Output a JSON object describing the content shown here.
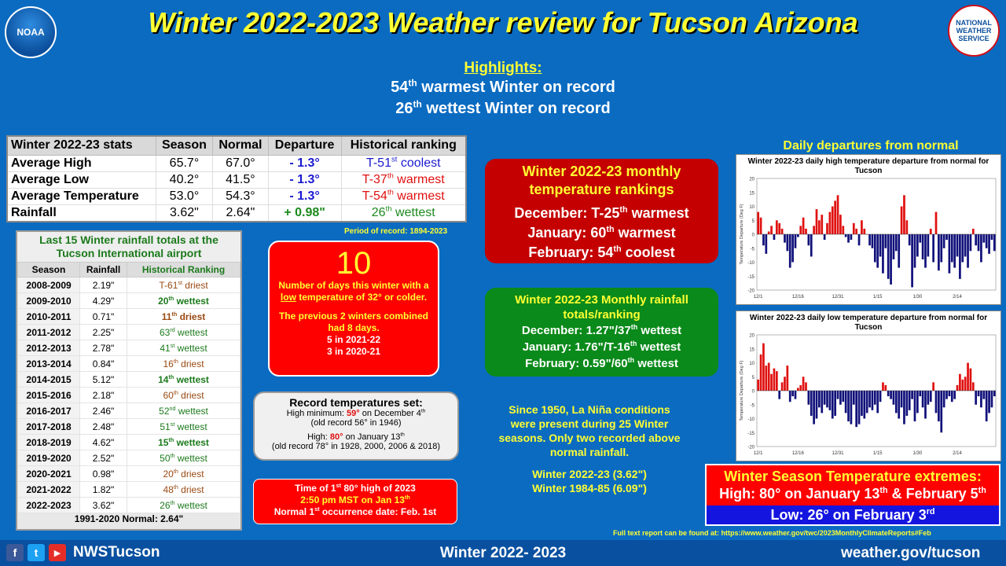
{
  "header": {
    "title": "Winter 2022-2023 Weather review for Tucson Arizona",
    "noaa_logo": "NOAA",
    "nws_logo": "NATIONAL WEATHER SERVICE"
  },
  "highlights": {
    "heading": "Highlights:",
    "line1_num": "54",
    "line1_sup": "th",
    "line1_text": " warmest  Winter on record",
    "line2_num": "26",
    "line2_sup": "th",
    "line2_text": " wettest  Winter on record"
  },
  "stats": {
    "headers": [
      "Winter 2022-23 stats",
      "Season",
      "Normal",
      "Departure",
      "Historical ranking"
    ],
    "rows": [
      {
        "label": "Average High",
        "season": "65.7°",
        "normal": "67.0°",
        "departure": "- 1.3°",
        "rank_pre": "T-51",
        "rank_sup": "st",
        "rank_post": " coolest"
      },
      {
        "label": "Average Low",
        "season": "40.2°",
        "normal": "41.5°",
        "departure": "- 1.3°",
        "rank_pre": "T-37",
        "rank_sup": "th",
        "rank_post": " warmest"
      },
      {
        "label": "Average Temperature",
        "season": "53.0°",
        "normal": "54.3°",
        "departure": "- 1.3°",
        "rank_pre": "T-54",
        "rank_sup": "th",
        "rank_post": " warmest"
      },
      {
        "label": "Rainfall",
        "season": "3.62\"",
        "normal": "2.64\"",
        "departure": "+ 0.98\"",
        "rank_pre": "26",
        "rank_sup": "th",
        "rank_post": " wettest"
      }
    ],
    "period": "Period of record: 1894-2023"
  },
  "rainfall": {
    "caption": "Last 15 Winter rainfall totals at the Tucson International airport",
    "headers": [
      "Season",
      "Rainfall",
      "Historical Ranking"
    ],
    "rows": [
      {
        "season": "2008-2009",
        "rain": "2.19\"",
        "rank": "T-61",
        "sup": "st",
        "post": " driest",
        "style": "rk-br"
      },
      {
        "season": "2009-2010",
        "rain": "4.29\"",
        "rank": "20",
        "sup": "th",
        "post": " wettest",
        "style": "rk-b"
      },
      {
        "season": "2010-2011",
        "rain": "0.71\"",
        "rank": "11",
        "sup": "th",
        "post": " driest",
        "style": "rk-brb"
      },
      {
        "season": "2011-2012",
        "rain": "2.25\"",
        "rank": "63",
        "sup": "rd",
        "post": " wettest",
        "style": "rk-n"
      },
      {
        "season": "2012-2013",
        "rain": "2.78\"",
        "rank": "41",
        "sup": "st",
        "post": " wettest",
        "style": "rk-n"
      },
      {
        "season": "2013-2014",
        "rain": "0.84\"",
        "rank": "16",
        "sup": "th",
        "post": " driest",
        "style": "rk-br"
      },
      {
        "season": "2014-2015",
        "rain": "5.12\"",
        "rank": "14",
        "sup": "th",
        "post": " wettest",
        "style": "rk-b"
      },
      {
        "season": "2015-2016",
        "rain": "2.18\"",
        "rank": "60",
        "sup": "th",
        "post": " driest",
        "style": "rk-br"
      },
      {
        "season": "2016-2017",
        "rain": "2.46\"",
        "rank": "52",
        "sup": "nd",
        "post": " wettest",
        "style": "rk-n"
      },
      {
        "season": "2017-2018",
        "rain": "2.48\"",
        "rank": "51",
        "sup": "st",
        "post": " wettest",
        "style": "rk-n"
      },
      {
        "season": "2018-2019",
        "rain": "4.62\"",
        "rank": "15",
        "sup": "th",
        "post": " wettest",
        "style": "rk-b"
      },
      {
        "season": "2019-2020",
        "rain": "2.52\"",
        "rank": "50",
        "sup": "th",
        "post": " wettest",
        "style": "rk-n"
      },
      {
        "season": "2020-2021",
        "rain": "0.98\"",
        "rank": "20",
        "sup": "th",
        "post": " driest",
        "style": "rk-br"
      },
      {
        "season": "2021-2022",
        "rain": "1.82\"",
        "rank": "48",
        "sup": "th",
        "post": " driest",
        "style": "rk-br"
      },
      {
        "season": "2022-2023",
        "rain": "3.62\"",
        "rank": "26",
        "sup": "th",
        "post": " wettest",
        "style": "rk-n"
      }
    ],
    "footer": "1991-2020 Normal: 2.64\""
  },
  "cold_days": {
    "count": "10",
    "line1": "Number of days this winter with a ",
    "low_word": "low",
    "line2": " temperature of 32° or colder.",
    "prev": "The previous 2 winters combined had 8 days.",
    "y1": "5 in 2021-22",
    "y2": "3 in 2020-21"
  },
  "records": {
    "heading": "Record temperatures set:",
    "hm_pre": "High minimum: ",
    "hm_val": "59°",
    "hm_post": " on December 4",
    "hm_sup": "th",
    "hm_old": "(old record 56° in 1946)",
    "h_pre": "High: ",
    "h_val": "80°",
    "h_post": " on January 13",
    "h_sup": "th",
    "h_old": "(old record 78° in 1928, 2000, 2006 & 2018)"
  },
  "first80": {
    "l1_pre": "Time of 1",
    "l1_sup": "st",
    "l1_post": " 80° high of 2023",
    "l2_pre": "2:50 pm MST on Jan 13",
    "l2_sup": "th",
    "l3_pre": "Normal 1",
    "l3_sup": "st",
    "l3_post": " occurrence date: Feb. 1st"
  },
  "monthly_temp": {
    "title": "Winter 2022-23 monthly temperature rankings",
    "rows": [
      {
        "pre": "December:  T-25",
        "sup": "th",
        "post": " warmest"
      },
      {
        "pre": "January: 60",
        "sup": "th",
        "post": " warmest"
      },
      {
        "pre": "February: 54",
        "sup": "th",
        "post": " coolest"
      }
    ]
  },
  "monthly_rain": {
    "title": "Winter 2022-23  Monthly rainfall  totals/ranking",
    "rows": [
      {
        "pre": "December:  1.27\"/37",
        "sup": "th",
        "post": "  wettest"
      },
      {
        "pre": "January:  1.76\"/T-16",
        "sup": "th",
        "post": "  wettest"
      },
      {
        "pre": "February:  0.59\"/60",
        "sup": "th",
        "post": "  wettest"
      }
    ]
  },
  "lanina": {
    "text": "Since 1950, La Niña conditions were present during 25 Winter seasons. Only two recorded above normal rainfall.",
    "w1": "Winter 2022-23 (3.62\")",
    "w2": "Winter 1984-85 (6.09\")"
  },
  "daily": {
    "title": "Daily departures from normal",
    "hi_chart_title": "Winter 2022-23 daily high temperature departure from normal for Tucson",
    "lo_chart_title": "Winter 2022-23 daily low temperature departure from normal for Tucson",
    "ylabel": "Temperature Departure (Deg F)",
    "x_ticks": [
      "12/1",
      "12/16",
      "12/31",
      "1/15",
      "1/30",
      "2/14"
    ],
    "pos_color": "#e01010",
    "neg_color": "#10107a"
  },
  "chart_data": [
    {
      "type": "bar",
      "title": "Winter 2022-23 daily high temperature departure from normal for Tucson",
      "ylabel": "Temperature Departure (Deg F)",
      "ylim": [
        -20,
        20
      ],
      "y_ticks": [
        20,
        15,
        10,
        5,
        0,
        -5,
        -10,
        -15,
        -20
      ],
      "x_ticks": [
        "12/1",
        "12/16",
        "12/31",
        "1/15",
        "1/30",
        "2/14"
      ],
      "values": [
        8,
        6,
        -4,
        -7,
        1,
        3,
        -2,
        5,
        4,
        2,
        -3,
        -6,
        -12,
        -10,
        -5,
        -1,
        3,
        6,
        2,
        -4,
        -8,
        3,
        9,
        5,
        7,
        -2,
        4,
        8,
        10,
        12,
        14,
        7,
        3,
        -1,
        -3,
        -2,
        4,
        2,
        -4,
        5,
        2,
        0,
        -4,
        -5,
        -10,
        -12,
        -8,
        -14,
        -5,
        -16,
        -18,
        -9,
        -6,
        -12,
        10,
        14,
        5,
        -4,
        -19,
        -12,
        -8,
        -3,
        -9,
        -12,
        -8,
        2,
        -10,
        8,
        -13,
        -10,
        -5,
        -2,
        -14,
        -10,
        -12,
        -8,
        -16,
        -10,
        -8,
        -12,
        -6,
        2,
        -4,
        -6,
        -10,
        -3,
        -5,
        -7,
        -2,
        -6
      ],
      "grid": false
    },
    {
      "type": "bar",
      "title": "Winter 2022-23 daily low temperature departure from normal for Tucson",
      "ylabel": "Temperature Departure (Deg F)",
      "ylim": [
        -20,
        20
      ],
      "y_ticks": [
        20,
        15,
        10,
        5,
        0,
        -5,
        -10,
        -15,
        -20
      ],
      "x_ticks": [
        "12/1",
        "12/16",
        "12/31",
        "1/15",
        "1/30",
        "2/14"
      ],
      "values": [
        4,
        13,
        17,
        9,
        10,
        6,
        8,
        7,
        -3,
        3,
        5,
        9,
        -4,
        -2,
        -3,
        1,
        2,
        5,
        3,
        -5,
        -9,
        -12,
        -10,
        -6,
        -8,
        -5,
        -6,
        -7,
        -10,
        -9,
        -3,
        -5,
        -4,
        -8,
        -11,
        -12,
        -5,
        -13,
        -12,
        -9,
        -10,
        -8,
        -6,
        -7,
        -5,
        -8,
        -4,
        3,
        2,
        -2,
        -3,
        -5,
        -8,
        -10,
        -6,
        -12,
        -9,
        -7,
        -3,
        -11,
        -8,
        -2,
        -6,
        -10,
        -5,
        -4,
        3,
        -8,
        -11,
        -15,
        -6,
        -3,
        -2,
        -4,
        -3,
        2,
        6,
        4,
        5,
        10,
        8,
        3,
        -5,
        -2,
        -6,
        -3,
        -11,
        -8,
        -6,
        -2
      ],
      "grid": false
    }
  ],
  "extremes": {
    "title": "Winter Season Temperature extremes:",
    "high_pre": "High: 80° on January 13",
    "high_sup1": "th",
    "high_mid": " & February 5",
    "high_sup2": "th",
    "low_pre": "Low: 26° on February 3",
    "low_sup": "rd"
  },
  "footer": {
    "report": "Full text report can be found at: https://www.weather.gov/twc/2023MonthlyClimateReports#Feb",
    "handle": "NWSTucson",
    "season": "Winter 2022- 2023",
    "site": "weather.gov/tucson",
    "fb": "f",
    "tw": "t",
    "yt": "▶"
  }
}
